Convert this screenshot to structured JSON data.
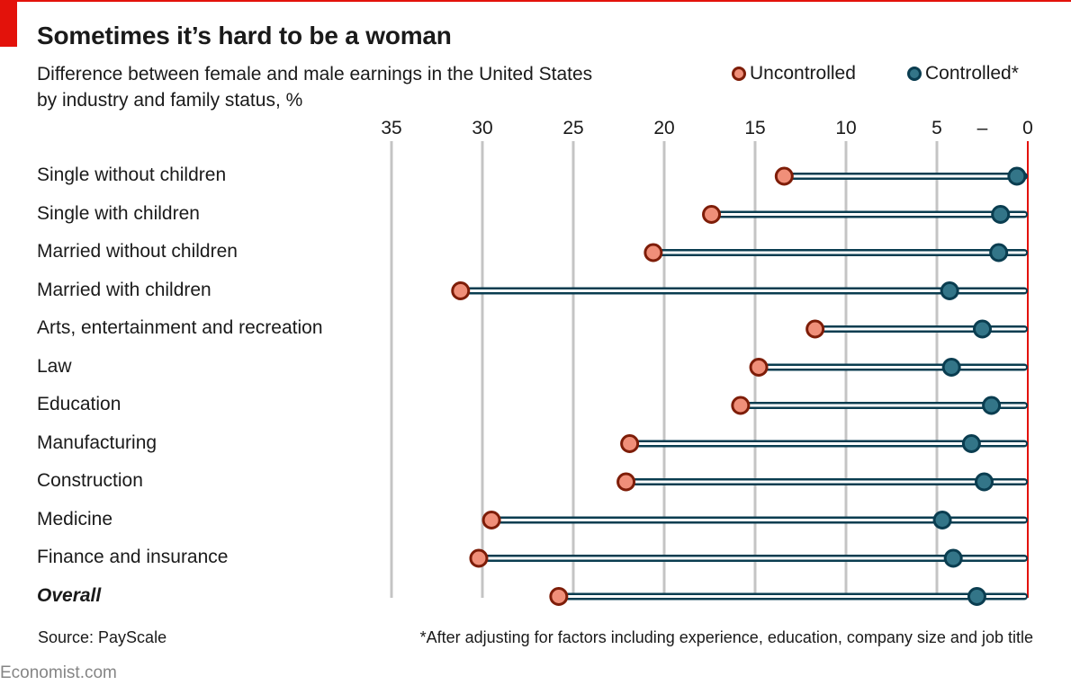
{
  "header": {
    "title": "Sometimes it’s hard to be a woman",
    "subtitle_line1": "Difference between female and male earnings in the United States",
    "subtitle_line2": "by industry and family status, %"
  },
  "legend": {
    "uncontrolled": "Uncontrolled",
    "controlled": "Controlled*"
  },
  "footer": {
    "source": "Source: PayScale",
    "note": "*After adjusting for factors including experience, education, company size and job title",
    "brand": "Economist.com"
  },
  "colors": {
    "uncontrolled_fill": "#f08f79",
    "uncontrolled_stroke": "#7e1d08",
    "controlled_fill": "#337588",
    "controlled_stroke": "#0a3d50",
    "zero_line": "#e3120b",
    "grid": "#c4c4c4"
  },
  "chart_data": {
    "type": "dot-range",
    "title": "Sometimes it’s hard to be a woman",
    "xlabel": "",
    "ylabel": "",
    "xlim": [
      0,
      35
    ],
    "x_axis_reversed": true,
    "x_ticks": [
      35,
      30,
      25,
      20,
      15,
      10,
      5,
      0
    ],
    "x_tick_labels": [
      "35",
      "30",
      "25",
      "20",
      "15",
      "10",
      "5",
      "0"
    ],
    "extra_tick_label": {
      "value": 2.5,
      "text": "–"
    },
    "grid": true,
    "legend_position": "top-right",
    "categories": [
      "Single without children",
      "Single with children",
      "Married without children",
      "Married with children",
      "Arts, entertainment and recreation",
      "Law",
      "Education",
      "Manufacturing",
      "Construction",
      "Medicine",
      "Finance and insurance",
      "Overall"
    ],
    "series": [
      {
        "name": "Uncontrolled",
        "values": [
          13.4,
          17.4,
          20.6,
          31.2,
          11.7,
          14.8,
          15.8,
          21.9,
          22.1,
          29.5,
          30.2,
          25.8
        ]
      },
      {
        "name": "Controlled*",
        "values": [
          0.6,
          1.5,
          1.6,
          4.3,
          2.5,
          4.2,
          2.0,
          3.1,
          2.4,
          4.7,
          4.1,
          2.8
        ]
      }
    ]
  }
}
